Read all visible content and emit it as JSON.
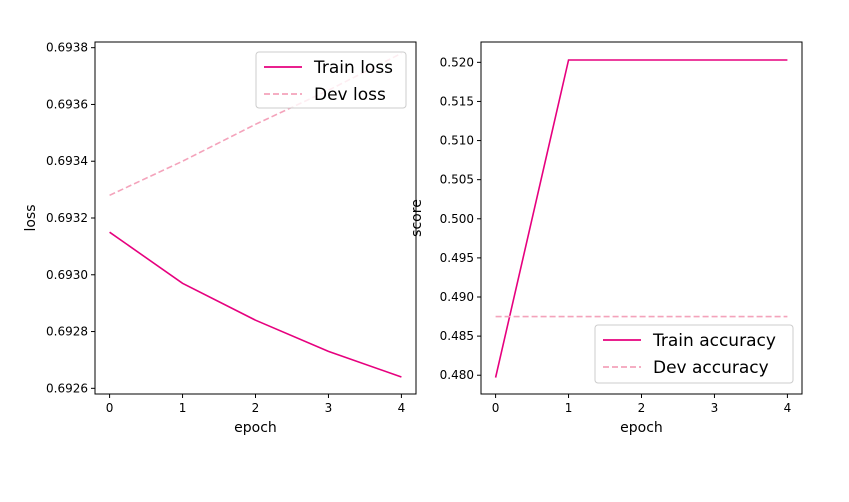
{
  "chart_data": [
    {
      "type": "line",
      "xlabel": "epoch",
      "ylabel": "loss",
      "x": [
        0,
        1,
        2,
        3,
        4
      ],
      "xticks": [
        "0",
        "1",
        "2",
        "3",
        "4"
      ],
      "xlim": [
        -0.2,
        4.2
      ],
      "ylim": [
        0.69258,
        0.69382
      ],
      "yticks": [
        "0.6926",
        "0.6928",
        "0.6930",
        "0.6932",
        "0.6934",
        "0.6936",
        "0.6938"
      ],
      "legend_position": "upper-right",
      "grid": false,
      "series": [
        {
          "name": "Train loss",
          "values": [
            0.69315,
            0.69297,
            0.69284,
            0.69273,
            0.69264
          ],
          "color": "#e6007e",
          "dash": "solid"
        },
        {
          "name": "Dev loss",
          "values": [
            0.69328,
            0.6934,
            0.69353,
            0.69365,
            0.69378
          ],
          "color": "#f4a3bb",
          "dash": "dashed"
        }
      ]
    },
    {
      "type": "line",
      "xlabel": "epoch",
      "ylabel": "score",
      "x": [
        0,
        1,
        2,
        3,
        4
      ],
      "xticks": [
        "0",
        "1",
        "2",
        "3",
        "4"
      ],
      "xlim": [
        -0.2,
        4.2
      ],
      "ylim": [
        0.4776,
        0.5226
      ],
      "yticks": [
        "0.480",
        "0.485",
        "0.490",
        "0.495",
        "0.500",
        "0.505",
        "0.510",
        "0.515",
        "0.520"
      ],
      "legend_position": "lower-right",
      "grid": false,
      "series": [
        {
          "name": "Train accuracy",
          "values": [
            0.4797,
            0.5203,
            0.5203,
            0.5203,
            0.5203
          ],
          "color": "#e6007e",
          "dash": "solid"
        },
        {
          "name": "Dev accuracy",
          "values": [
            0.4875,
            0.4875,
            0.4875,
            0.4875,
            0.4875
          ],
          "color": "#f4a3bb",
          "dash": "dashed"
        }
      ]
    }
  ]
}
